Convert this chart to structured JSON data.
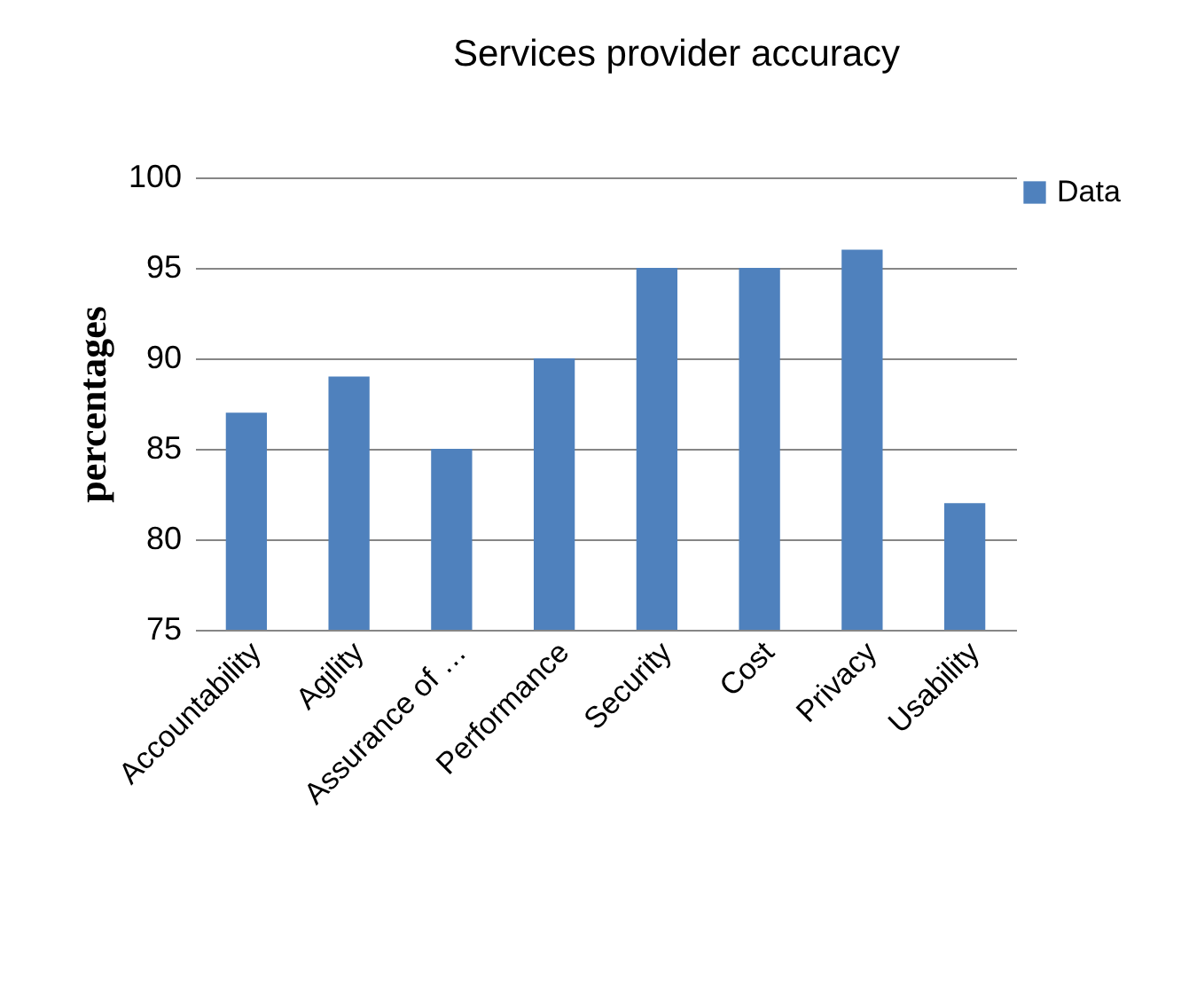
{
  "chart_data": {
    "type": "bar",
    "title": "Services provider accuracy",
    "ylabel": "percentages",
    "categories": [
      "Accountability",
      "Agility",
      "Assurance of …",
      "Performance",
      "Security",
      "Cost",
      "Privacy",
      "Usability"
    ],
    "series": [
      {
        "name": "Data",
        "color": "#4f81bd",
        "values": [
          87,
          89,
          85,
          90,
          95,
          95,
          96,
          82
        ]
      }
    ],
    "ylim": [
      75,
      100
    ],
    "yticks": [
      75,
      80,
      85,
      90,
      95,
      100
    ],
    "grid": "y",
    "legend": "right"
  }
}
